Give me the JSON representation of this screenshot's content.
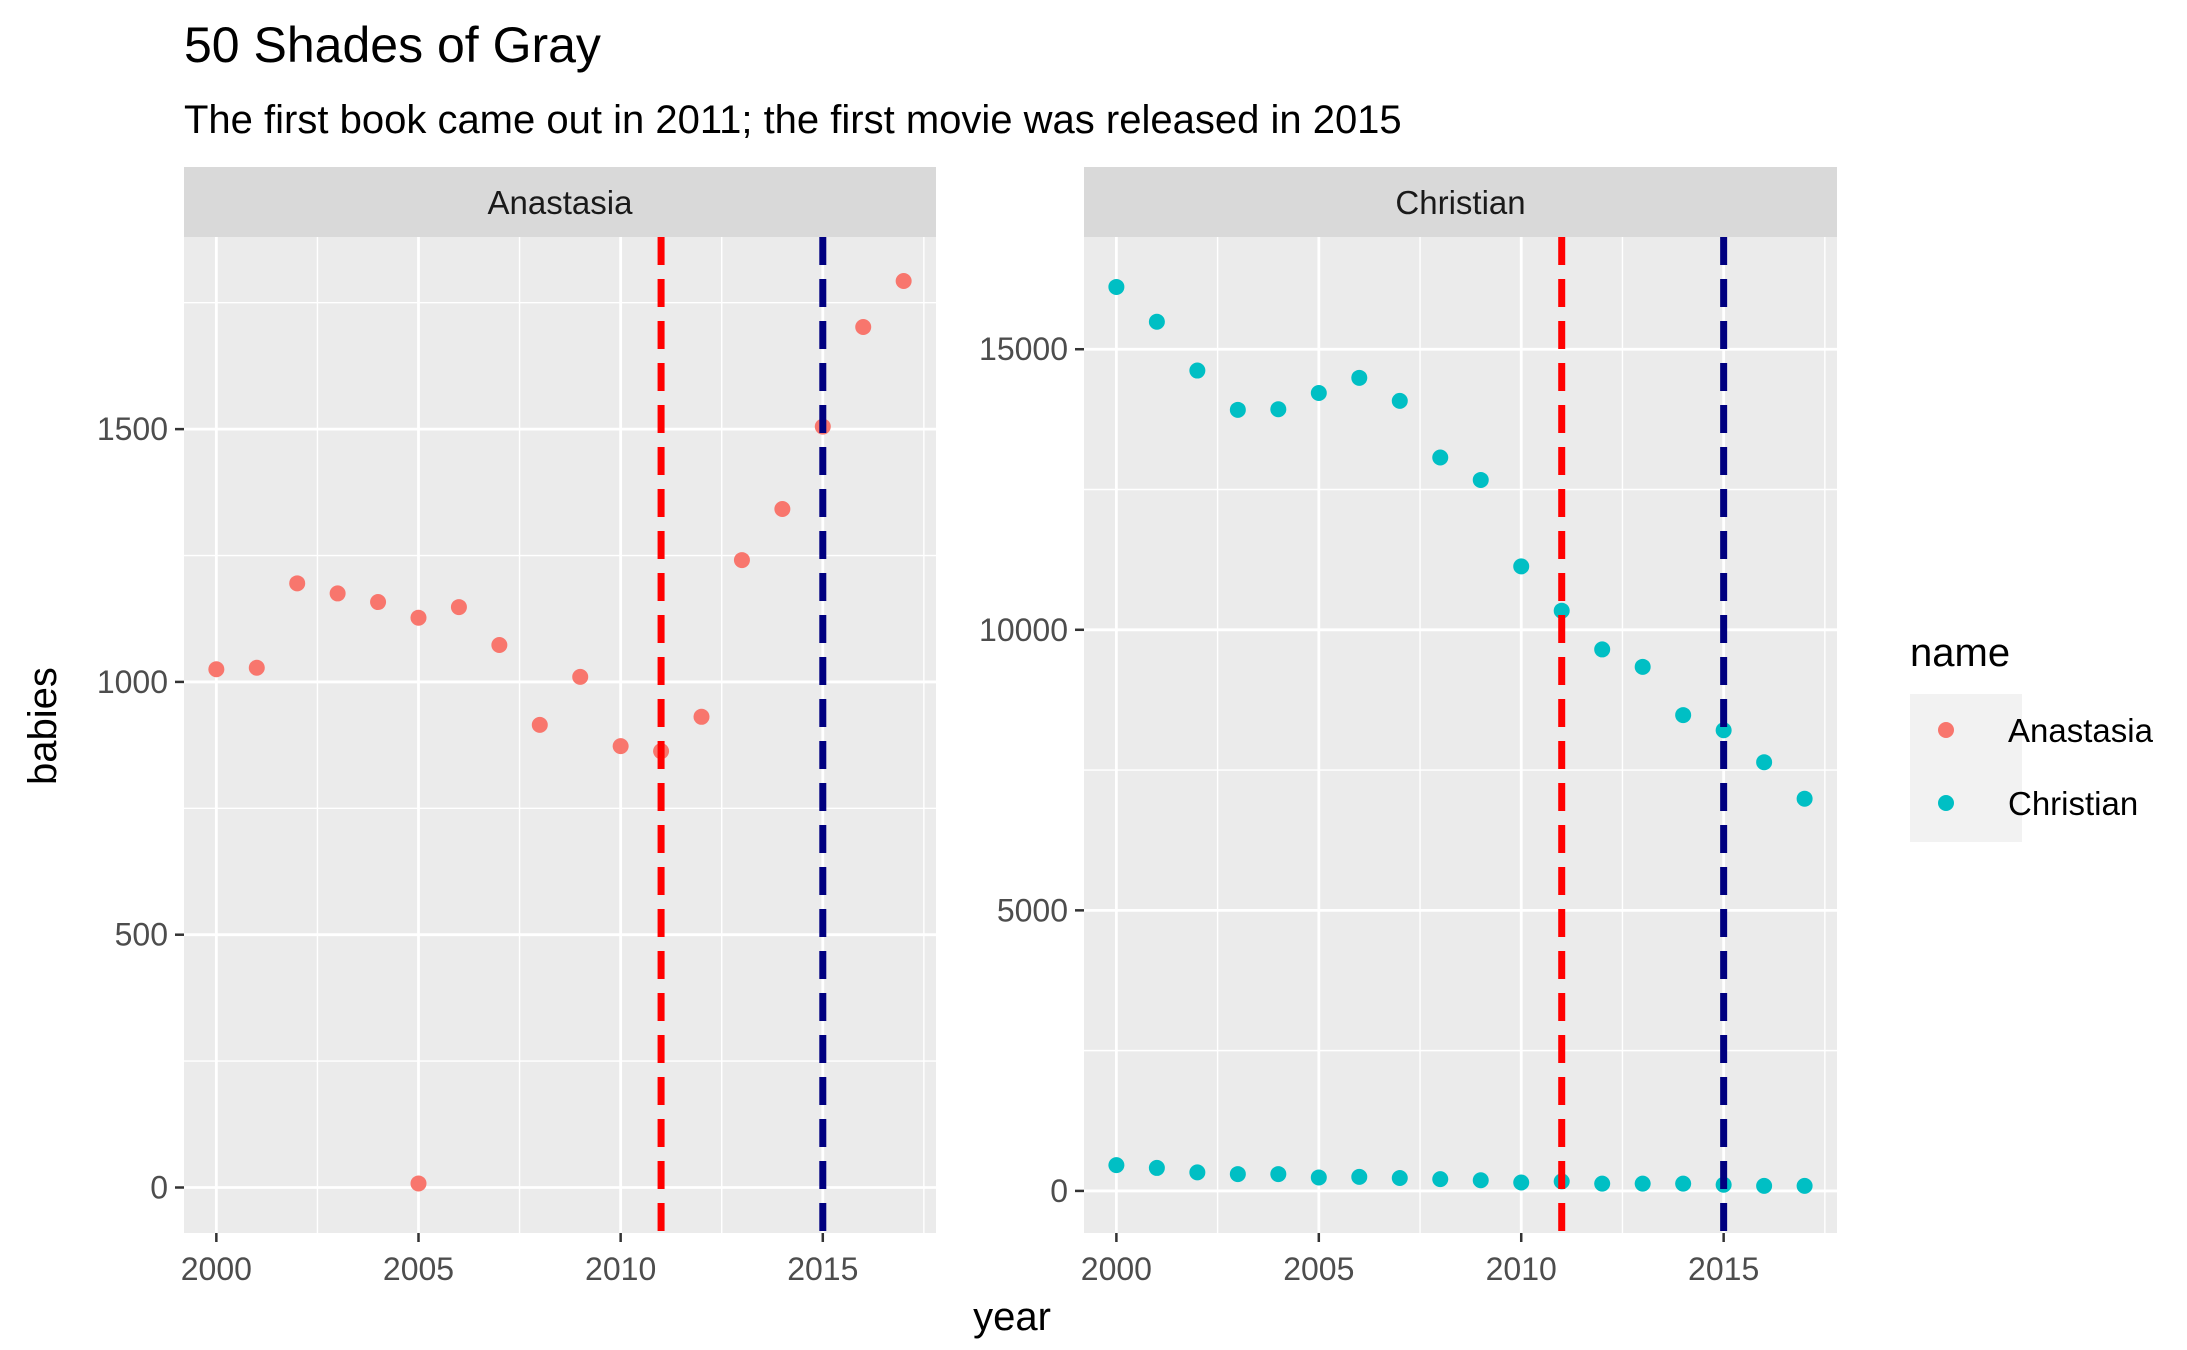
{
  "chart_data": {
    "type": "scatter",
    "title": "50 Shades of Gray",
    "subtitle": "The first book came out in 2011; the first movie was released in 2015",
    "xlabel": "year",
    "ylabel": "babies",
    "x_ticks": [
      2000,
      2005,
      2010,
      2015
    ],
    "xlim": [
      1999.2,
      2017.8
    ],
    "grid": true,
    "legend": {
      "title": "name",
      "position": "right",
      "entries": [
        {
          "label": "Anastasia",
          "color": "#F8766D"
        },
        {
          "label": "Christian",
          "color": "#00BFC4"
        }
      ]
    },
    "vlines": [
      {
        "x": 2011,
        "color": "#FF0000",
        "style": "dashed"
      },
      {
        "x": 2015,
        "color": "#000080",
        "style": "dashed"
      }
    ],
    "panels": [
      {
        "strip": "Anastasia",
        "color": "#F8766D",
        "ylim": [
          -90,
          1880
        ],
        "y_ticks": [
          0,
          500,
          1000,
          1500
        ],
        "y_tick_labels": [
          "0",
          "500",
          "1000",
          "1500"
        ],
        "points": [
          {
            "x": 2000,
            "y": 1025
          },
          {
            "x": 2001,
            "y": 1028
          },
          {
            "x": 2002,
            "y": 1195
          },
          {
            "x": 2003,
            "y": 1175
          },
          {
            "x": 2004,
            "y": 1158
          },
          {
            "x": 2005,
            "y": 1127
          },
          {
            "x": 2005,
            "y": 8
          },
          {
            "x": 2006,
            "y": 1148
          },
          {
            "x": 2007,
            "y": 1073
          },
          {
            "x": 2008,
            "y": 915
          },
          {
            "x": 2009,
            "y": 1010
          },
          {
            "x": 2010,
            "y": 873
          },
          {
            "x": 2011,
            "y": 863
          },
          {
            "x": 2012,
            "y": 931
          },
          {
            "x": 2013,
            "y": 1241
          },
          {
            "x": 2014,
            "y": 1342
          },
          {
            "x": 2015,
            "y": 1505
          },
          {
            "x": 2016,
            "y": 1702
          },
          {
            "x": 2017,
            "y": 1793
          }
        ]
      },
      {
        "strip": "Christian",
        "color": "#00BFC4",
        "ylim": [
          -750,
          17000
        ],
        "y_ticks": [
          0,
          5000,
          10000,
          15000
        ],
        "y_tick_labels": [
          "0",
          "5000",
          "10000",
          "15000"
        ],
        "points": [
          {
            "x": 2000,
            "y": 16110
          },
          {
            "x": 2001,
            "y": 15490
          },
          {
            "x": 2002,
            "y": 14620
          },
          {
            "x": 2003,
            "y": 13920
          },
          {
            "x": 2004,
            "y": 13930
          },
          {
            "x": 2005,
            "y": 14220
          },
          {
            "x": 2006,
            "y": 14490
          },
          {
            "x": 2007,
            "y": 14080
          },
          {
            "x": 2008,
            "y": 13070
          },
          {
            "x": 2009,
            "y": 12670
          },
          {
            "x": 2010,
            "y": 11130
          },
          {
            "x": 2011,
            "y": 10340
          },
          {
            "x": 2012,
            "y": 9650
          },
          {
            "x": 2013,
            "y": 9340
          },
          {
            "x": 2014,
            "y": 8480
          },
          {
            "x": 2015,
            "y": 8210
          },
          {
            "x": 2016,
            "y": 7640
          },
          {
            "x": 2017,
            "y": 6990
          },
          {
            "x": 2000,
            "y": 460
          },
          {
            "x": 2001,
            "y": 410
          },
          {
            "x": 2002,
            "y": 330
          },
          {
            "x": 2003,
            "y": 300
          },
          {
            "x": 2004,
            "y": 300
          },
          {
            "x": 2005,
            "y": 240
          },
          {
            "x": 2006,
            "y": 250
          },
          {
            "x": 2007,
            "y": 230
          },
          {
            "x": 2008,
            "y": 210
          },
          {
            "x": 2009,
            "y": 190
          },
          {
            "x": 2010,
            "y": 150
          },
          {
            "x": 2011,
            "y": 170
          },
          {
            "x": 2012,
            "y": 130
          },
          {
            "x": 2013,
            "y": 130
          },
          {
            "x": 2014,
            "y": 130
          },
          {
            "x": 2015,
            "y": 110
          },
          {
            "x": 2016,
            "y": 90
          },
          {
            "x": 2017,
            "y": 90
          }
        ]
      }
    ]
  }
}
